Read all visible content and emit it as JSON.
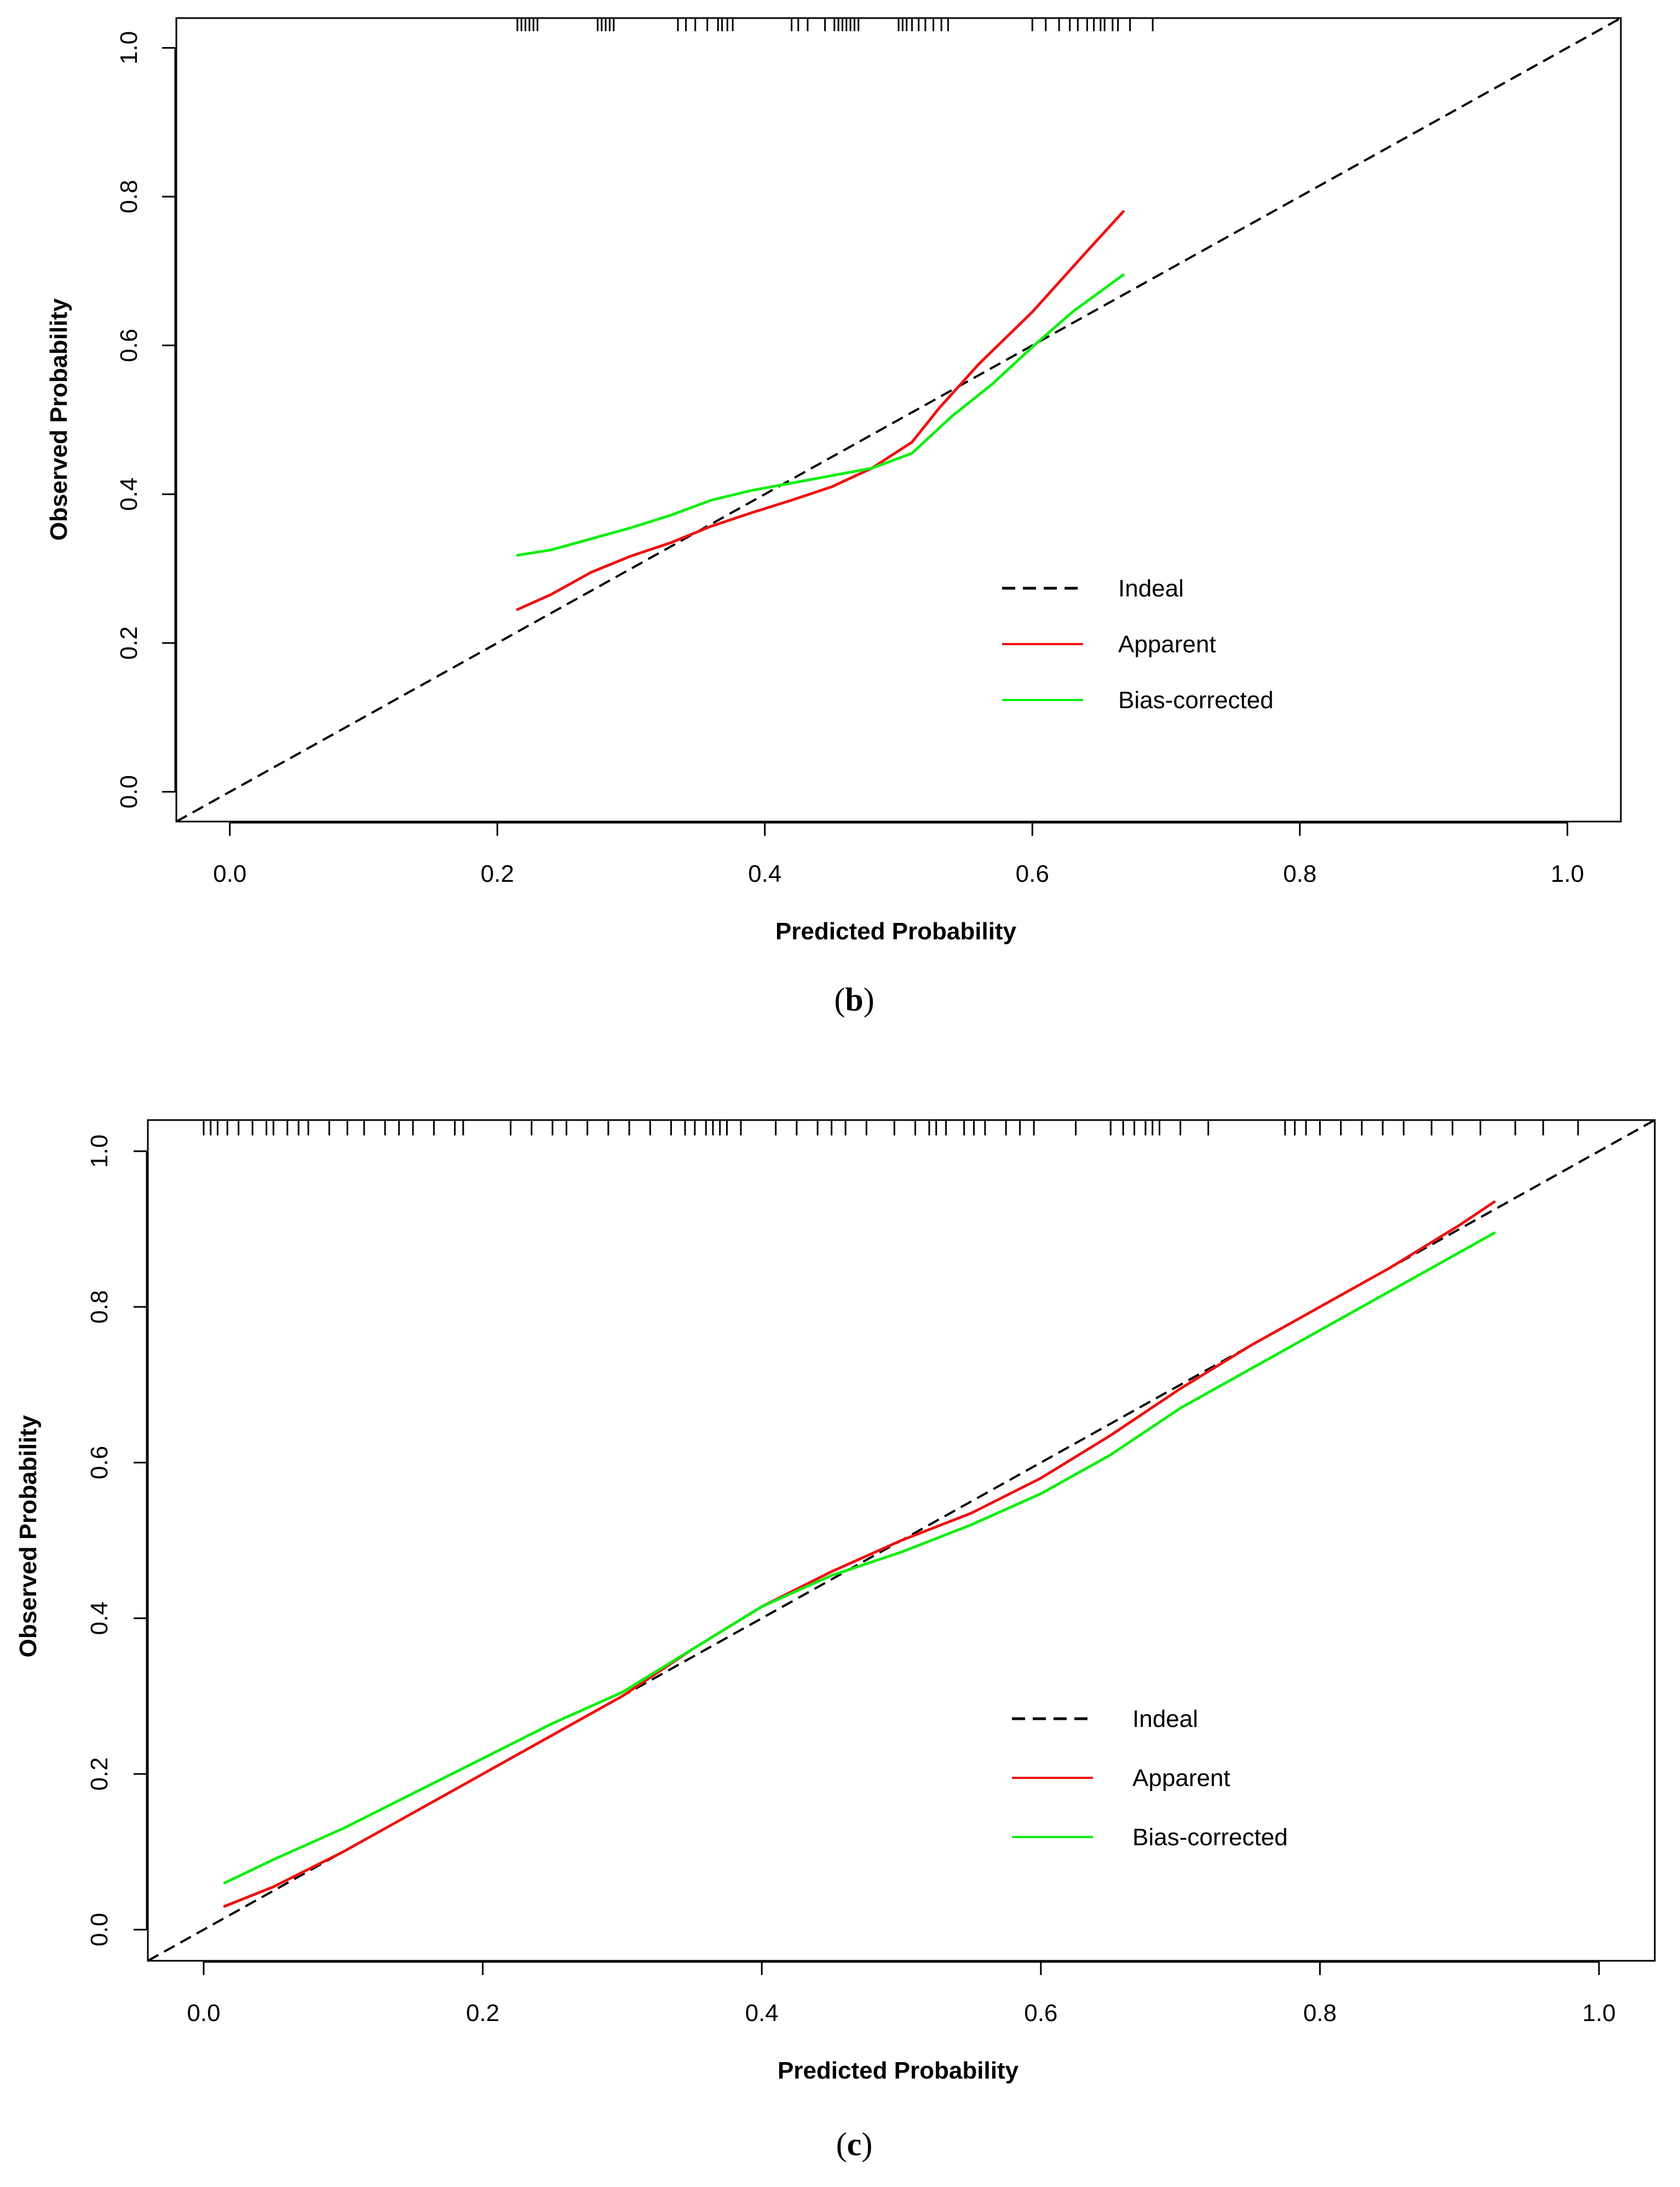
{
  "chart_data": [
    {
      "type": "line",
      "panel": "b",
      "caption_open": "(",
      "caption_letter": "b",
      "caption_close": ")",
      "xlabel": "Predicted Probability",
      "ylabel": "Observed Probability",
      "xlim": [
        -0.04,
        1.04
      ],
      "ylim": [
        -0.04,
        1.04
      ],
      "xticks": [
        0.0,
        0.2,
        0.4,
        0.6,
        0.8,
        1.0
      ],
      "yticks": [
        0.0,
        0.2,
        0.4,
        0.6,
        0.8,
        1.0
      ],
      "xtick_labels": [
        "0.0",
        "0.2",
        "0.4",
        "0.6",
        "0.8",
        "1.0"
      ],
      "ytick_labels": [
        "0.0",
        "0.2",
        "0.4",
        "0.6",
        "0.8",
        "1.0"
      ],
      "legend_position": "bottom-right",
      "series": [
        {
          "name": "Indeal",
          "color": "#000000",
          "dashed": true,
          "x": [
            -0.04,
            1.04
          ],
          "y": [
            -0.04,
            1.04
          ]
        },
        {
          "name": "Apparent",
          "color": "#ee1111",
          "dashed": false,
          "x": [
            0.215,
            0.24,
            0.27,
            0.3,
            0.33,
            0.36,
            0.39,
            0.42,
            0.45,
            0.48,
            0.51,
            0.53,
            0.56,
            0.6,
            0.64,
            0.668
          ],
          "y": [
            0.245,
            0.265,
            0.295,
            0.317,
            0.335,
            0.357,
            0.375,
            0.392,
            0.41,
            0.435,
            0.47,
            0.515,
            0.575,
            0.645,
            0.725,
            0.78
          ]
        },
        {
          "name": "Bias-corrected",
          "color": "#11ee11",
          "dashed": false,
          "x": [
            0.215,
            0.24,
            0.27,
            0.3,
            0.33,
            0.36,
            0.39,
            0.42,
            0.45,
            0.48,
            0.51,
            0.54,
            0.57,
            0.6,
            0.63,
            0.668
          ],
          "y": [
            0.318,
            0.325,
            0.34,
            0.355,
            0.372,
            0.392,
            0.405,
            0.415,
            0.425,
            0.435,
            0.455,
            0.505,
            0.548,
            0.598,
            0.645,
            0.695
          ]
        }
      ],
      "rug": [
        0.215,
        0.218,
        0.221,
        0.224,
        0.227,
        0.23,
        0.275,
        0.278,
        0.281,
        0.284,
        0.287,
        0.335,
        0.341,
        0.348,
        0.357,
        0.365,
        0.368,
        0.372,
        0.376,
        0.42,
        0.425,
        0.432,
        0.445,
        0.452,
        0.455,
        0.458,
        0.461,
        0.464,
        0.467,
        0.47,
        0.5,
        0.503,
        0.506,
        0.51,
        0.515,
        0.52,
        0.526,
        0.532,
        0.537,
        0.6,
        0.61,
        0.62,
        0.628,
        0.634,
        0.641,
        0.646,
        0.651,
        0.654,
        0.66,
        0.664,
        0.673,
        0.69
      ]
    },
    {
      "type": "line",
      "panel": "c",
      "caption_open": "(",
      "caption_letter": "c",
      "caption_close": ")",
      "xlabel": "Predicted Probability",
      "ylabel": "Observed Probability",
      "xlim": [
        -0.04,
        1.04
      ],
      "ylim": [
        -0.04,
        1.04
      ],
      "xticks": [
        0.0,
        0.2,
        0.4,
        0.6,
        0.8,
        1.0
      ],
      "yticks": [
        0.0,
        0.2,
        0.4,
        0.6,
        0.8,
        1.0
      ],
      "xtick_labels": [
        "0.0",
        "0.2",
        "0.4",
        "0.6",
        "0.8",
        "1.0"
      ],
      "ytick_labels": [
        "0.0",
        "0.2",
        "0.4",
        "0.6",
        "0.8",
        "1.0"
      ],
      "legend_position": "bottom-right",
      "series": [
        {
          "name": "Indeal",
          "color": "#000000",
          "dashed": true,
          "x": [
            -0.04,
            1.04
          ],
          "y": [
            -0.04,
            1.04
          ]
        },
        {
          "name": "Apparent",
          "color": "#ee1111",
          "dashed": false,
          "x": [
            0.015,
            0.05,
            0.1,
            0.15,
            0.2,
            0.25,
            0.3,
            0.35,
            0.4,
            0.45,
            0.5,
            0.55,
            0.6,
            0.65,
            0.7,
            0.75,
            0.8,
            0.85,
            0.9,
            0.925
          ],
          "y": [
            0.03,
            0.055,
            0.1,
            0.15,
            0.2,
            0.25,
            0.3,
            0.36,
            0.415,
            0.46,
            0.5,
            0.535,
            0.58,
            0.635,
            0.695,
            0.75,
            0.8,
            0.85,
            0.905,
            0.935
          ]
        },
        {
          "name": "Bias-corrected",
          "color": "#11ee11",
          "dashed": false,
          "x": [
            0.015,
            0.05,
            0.1,
            0.15,
            0.2,
            0.25,
            0.3,
            0.35,
            0.4,
            0.45,
            0.5,
            0.55,
            0.6,
            0.65,
            0.7,
            0.75,
            0.8,
            0.85,
            0.9,
            0.925
          ],
          "y": [
            0.06,
            0.09,
            0.13,
            0.175,
            0.22,
            0.265,
            0.305,
            0.36,
            0.415,
            0.455,
            0.485,
            0.52,
            0.56,
            0.61,
            0.67,
            0.72,
            0.77,
            0.82,
            0.87,
            0.895
          ]
        }
      ],
      "rug": [
        0.0,
        0.005,
        0.01,
        0.017,
        0.025,
        0.035,
        0.045,
        0.05,
        0.06,
        0.068,
        0.075,
        0.09,
        0.103,
        0.115,
        0.13,
        0.14,
        0.15,
        0.165,
        0.18,
        0.186,
        0.22,
        0.235,
        0.25,
        0.26,
        0.275,
        0.29,
        0.305,
        0.32,
        0.335,
        0.345,
        0.352,
        0.36,
        0.365,
        0.37,
        0.375,
        0.385,
        0.41,
        0.425,
        0.44,
        0.45,
        0.46,
        0.475,
        0.495,
        0.51,
        0.52,
        0.525,
        0.532,
        0.545,
        0.552,
        0.56,
        0.575,
        0.585,
        0.595,
        0.625,
        0.65,
        0.659,
        0.667,
        0.675,
        0.68,
        0.685,
        0.7,
        0.72,
        0.775,
        0.782,
        0.79,
        0.8,
        0.815,
        0.83,
        0.845,
        0.86,
        0.88,
        0.895,
        0.915,
        0.94,
        0.96,
        0.985
      ]
    }
  ]
}
